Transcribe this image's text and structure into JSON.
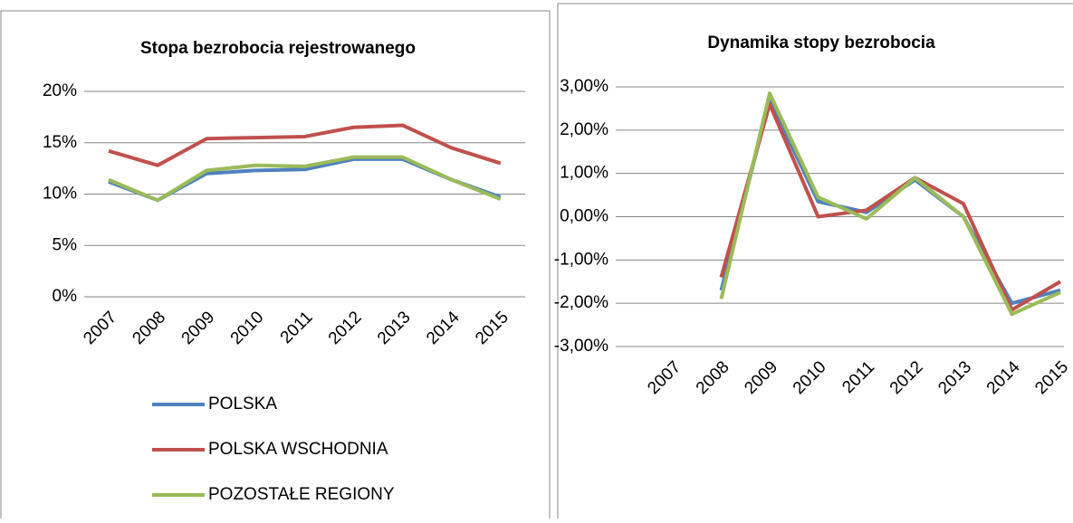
{
  "chart_data": [
    {
      "type": "line",
      "title": "Stopa bezrobocia rejestrowanego",
      "categories": [
        "2007",
        "2008",
        "2009",
        "2010",
        "2011",
        "2012",
        "2013",
        "2014",
        "2015"
      ],
      "series": [
        {
          "name": "POLSKA",
          "color": "#4f81bd",
          "values": [
            11.2,
            9.4,
            12.0,
            12.3,
            12.4,
            13.4,
            13.4,
            11.4,
            9.7
          ]
        },
        {
          "name": "POLSKA WSCHODNIA",
          "color": "#c0504d",
          "values": [
            14.2,
            12.8,
            15.4,
            15.5,
            15.6,
            16.5,
            16.7,
            14.5,
            13.0
          ]
        },
        {
          "name": "POZOSTAŁE REGIONY",
          "color": "#9bbb59",
          "values": [
            11.4,
            9.4,
            12.3,
            12.8,
            12.7,
            13.6,
            13.6,
            11.4,
            9.5
          ]
        }
      ],
      "ylim": [
        0,
        20
      ],
      "yticks": [
        {
          "value": 0,
          "label": "0%"
        },
        {
          "value": 5,
          "label": "5%"
        },
        {
          "value": 10,
          "label": "10%"
        },
        {
          "value": 15,
          "label": "15%"
        },
        {
          "value": 20,
          "label": "20%"
        }
      ],
      "grid": true,
      "legend": "bottom"
    },
    {
      "type": "line",
      "title": "Dynamika stopy bezrobocia",
      "categories": [
        "2007",
        "2008",
        "2009",
        "2010",
        "2011",
        "2012",
        "2013",
        "2014",
        "2015"
      ],
      "series": [
        {
          "name": "POLSKA",
          "color": "#4f81bd",
          "values": [
            null,
            -1.7,
            2.7,
            0.35,
            0.1,
            0.85,
            0.0,
            -2.0,
            -1.7
          ]
        },
        {
          "name": "POLSKA WSCHODNIA",
          "color": "#c0504d",
          "values": [
            null,
            -1.4,
            2.6,
            0.0,
            0.15,
            0.9,
            0.3,
            -2.15,
            -1.5
          ]
        },
        {
          "name": "POZOSTAŁE REGIONY",
          "color": "#9bbb59",
          "values": [
            null,
            -1.9,
            2.85,
            0.45,
            -0.05,
            0.9,
            0.0,
            -2.25,
            -1.75
          ]
        }
      ],
      "ylim": [
        -3,
        3
      ],
      "yticks": [
        {
          "value": -3,
          "label": "-3,00%"
        },
        {
          "value": -2,
          "label": "-2,00%"
        },
        {
          "value": -1,
          "label": "-1,00%"
        },
        {
          "value": 0,
          "label": "0,00%"
        },
        {
          "value": 1,
          "label": "1,00%"
        },
        {
          "value": 2,
          "label": "2,00%"
        },
        {
          "value": 3,
          "label": "3,00%"
        }
      ],
      "grid": true
    }
  ]
}
